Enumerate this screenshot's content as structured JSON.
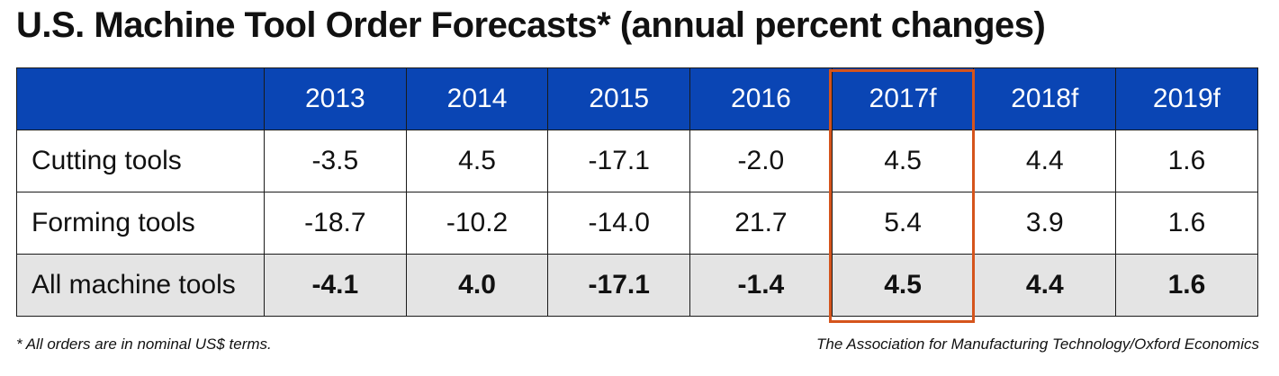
{
  "title": "U.S. Machine Tool Order Forecasts* (annual percent changes)",
  "footnote": "* All orders are in nominal US$ terms.",
  "source": "The Association for Manufacturing Technology/Oxford Economics",
  "colors": {
    "header_bg": "#0a45b4",
    "highlight": "#d5541c",
    "total_row_bg": "#e4e4e4"
  },
  "chart_data": {
    "type": "table",
    "title": "U.S. Machine Tool Order Forecasts* (annual percent changes)",
    "columns": [
      "2013",
      "2014",
      "2015",
      "2016",
      "2017f",
      "2018f",
      "2019f"
    ],
    "highlighted_column": "2017f",
    "rows": [
      {
        "label": "Cutting tools",
        "values": [
          "-3.5",
          "4.5",
          "-17.1",
          "-2.0",
          "4.5",
          "4.4",
          "1.6"
        ]
      },
      {
        "label": "Forming tools",
        "values": [
          "-18.7",
          "-10.2",
          "-14.0",
          "21.7",
          "5.4",
          "3.9",
          "1.6"
        ]
      },
      {
        "label": "All machine tools",
        "values": [
          "-4.1",
          "4.0",
          "-17.1",
          "-1.4",
          "4.5",
          "4.4",
          "1.6"
        ]
      }
    ]
  }
}
